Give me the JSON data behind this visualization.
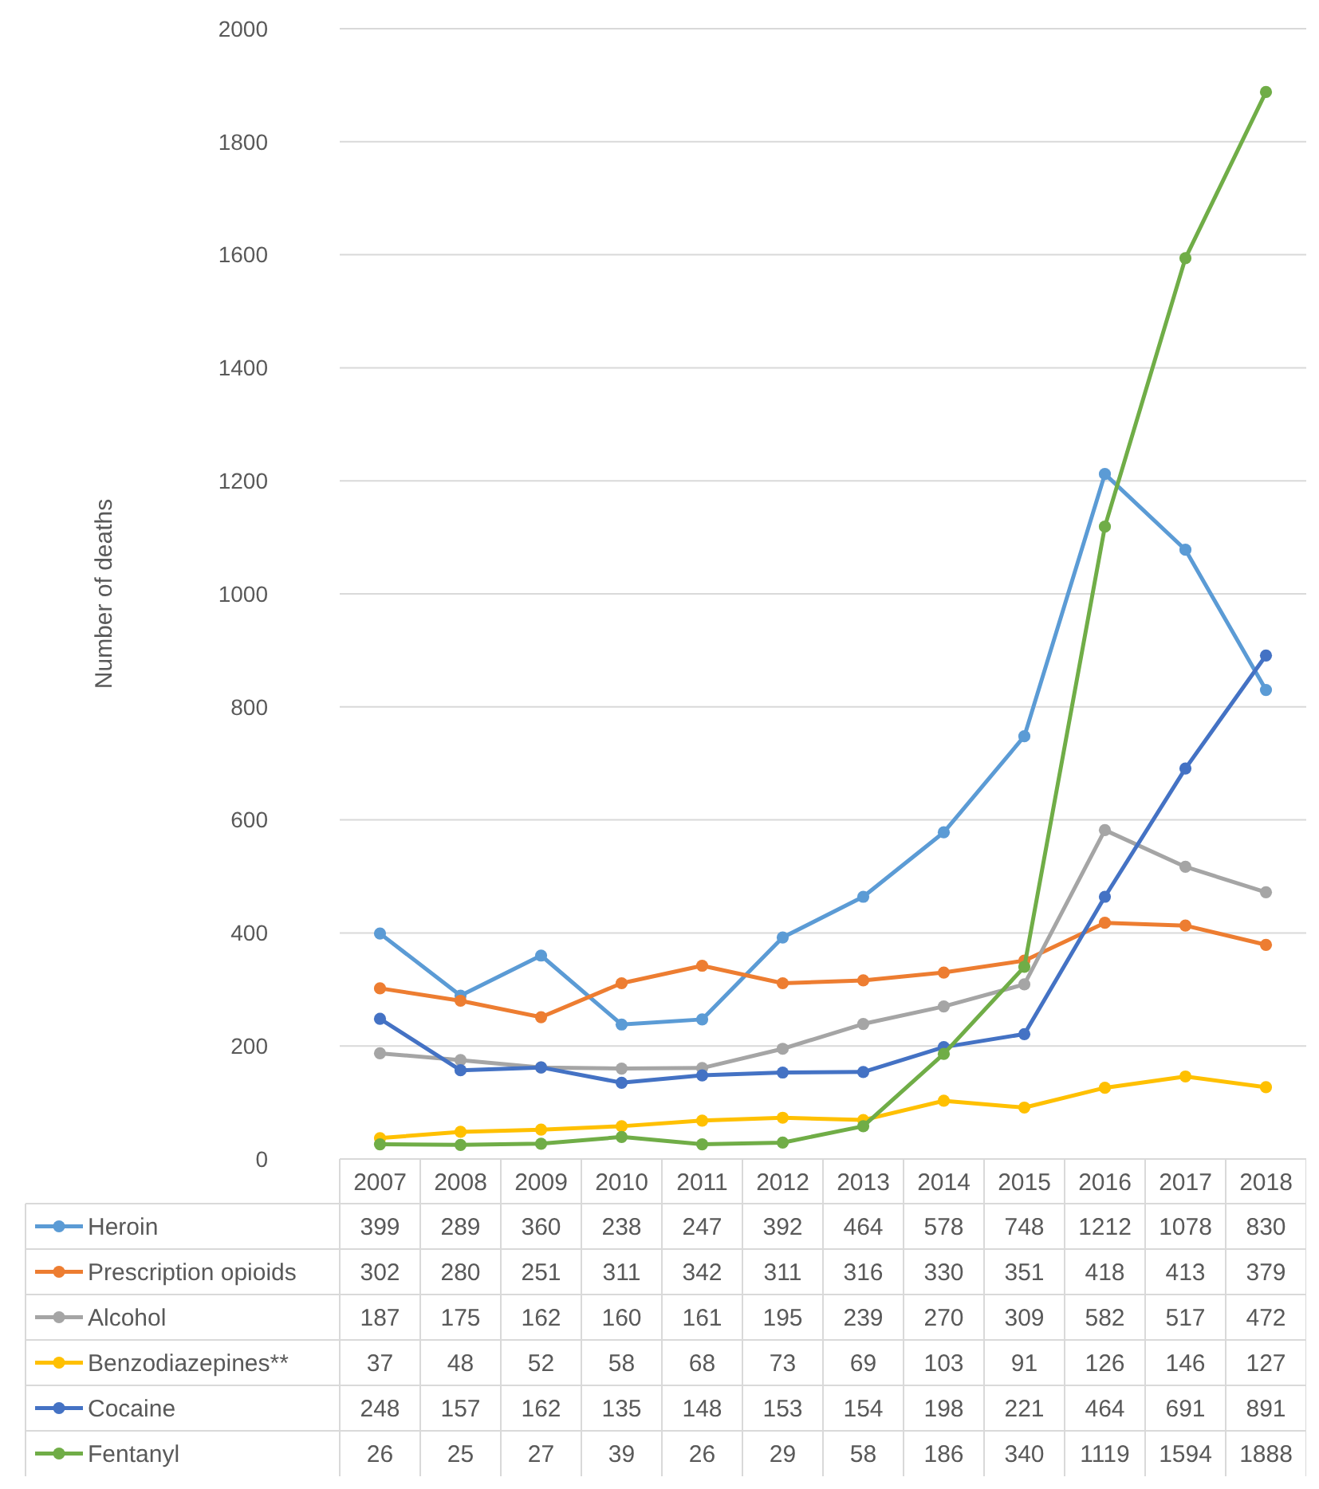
{
  "chart_data": {
    "type": "line",
    "ylabel": "Number of deaths",
    "categories": [
      "2007",
      "2008",
      "2009",
      "2010",
      "2011",
      "2012",
      "2013",
      "2014",
      "2015",
      "2016",
      "2017",
      "2018"
    ],
    "series": [
      {
        "name": "Heroin",
        "color": "#5b9bd5",
        "values": [
          399,
          289,
          360,
          238,
          247,
          392,
          464,
          578,
          748,
          1212,
          1078,
          830
        ]
      },
      {
        "name": "Prescription opioids",
        "color": "#ed7d31",
        "values": [
          302,
          280,
          251,
          311,
          342,
          311,
          316,
          330,
          351,
          418,
          413,
          379
        ]
      },
      {
        "name": "Alcohol",
        "color": "#a5a5a5",
        "values": [
          187,
          175,
          162,
          160,
          161,
          195,
          239,
          270,
          309,
          582,
          517,
          472
        ]
      },
      {
        "name": "Benzodiazepines**",
        "color": "#ffc000",
        "values": [
          37,
          48,
          52,
          58,
          68,
          73,
          69,
          103,
          91,
          126,
          146,
          127
        ]
      },
      {
        "name": "Cocaine",
        "color": "#4472c4",
        "values": [
          248,
          157,
          162,
          135,
          148,
          153,
          154,
          198,
          221,
          464,
          691,
          891
        ]
      },
      {
        "name": "Fentanyl",
        "color": "#70ad47",
        "values": [
          26,
          25,
          27,
          39,
          26,
          29,
          58,
          186,
          340,
          1119,
          1594,
          1888
        ]
      }
    ],
    "ylim": [
      0,
      2000
    ],
    "yticks": [
      0,
      200,
      400,
      600,
      800,
      1000,
      1200,
      1400,
      1600,
      1800,
      2000
    ],
    "grid": "y",
    "legend": "bottom",
    "marker": "circle",
    "line_style": "solid",
    "data_labels": true
  }
}
